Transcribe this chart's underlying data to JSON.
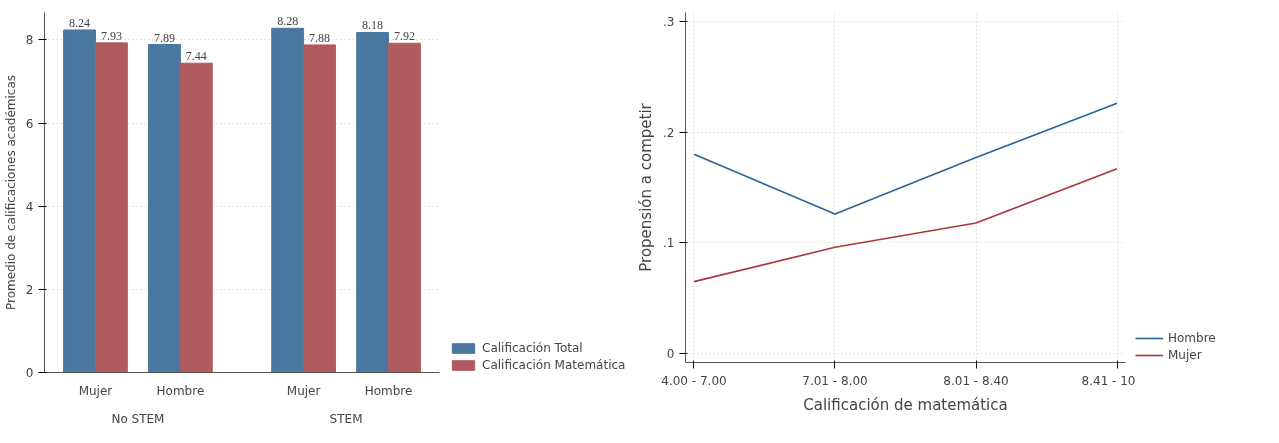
{
  "chart_data": [
    {
      "type": "bar",
      "ylabel": "Promedio de calificaciones académicas",
      "categories": [
        "Mujer",
        "Hombre",
        "Mujer",
        "Hombre"
      ],
      "series": [
        {
          "name": "Calificación Total",
          "color": "#4a77a0",
          "values": [
            8.24,
            7.89,
            8.28,
            8.18
          ]
        },
        {
          "name": "Calificación Matemática",
          "color": "#b05c5e",
          "values": [
            7.93,
            7.44,
            7.88,
            7.92
          ]
        }
      ],
      "annotations": [
        "No STEM",
        "STEM"
      ],
      "ylim": [
        0,
        8.66
      ],
      "yticks": [
        0,
        2,
        4,
        6,
        8
      ],
      "grid": "y",
      "legend": "bottom right",
      "data_labels": true
    },
    {
      "type": "line",
      "xlabel": "Calificación de matemática",
      "ylabel": "Propensión a competir",
      "categories": [
        "4.00 - 7.00",
        "7.01 - 8.00",
        "8.01 - 8.40",
        "8.41 - 10"
      ],
      "series": [
        {
          "name": "Hombre",
          "color": "#2a6396",
          "values": [
            0.18,
            0.126,
            0.177,
            0.226
          ]
        },
        {
          "name": "Mujer",
          "color": "#a8373f",
          "values": [
            0.065,
            0.096,
            0.118,
            0.167
          ]
        }
      ],
      "ylim": [
        -0.008,
        0.308
      ],
      "yticks": [
        {
          "value": 0,
          "label": "0"
        },
        {
          "value": 0.1,
          "label": ".1"
        },
        {
          "value": 0.2,
          "label": ".2"
        },
        {
          "value": 0.3,
          "label": ".3"
        }
      ],
      "grid": true,
      "legend": "bottom right"
    }
  ]
}
